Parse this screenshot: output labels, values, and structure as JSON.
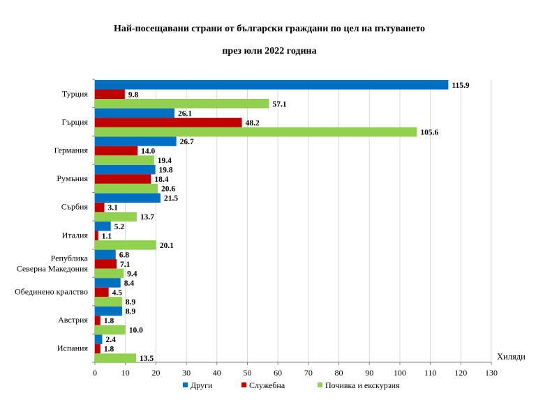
{
  "chart_data": {
    "type": "bar",
    "orientation": "horizontal",
    "title": "Най-посещавани страни от български граждани по цел на пътуването",
    "subtitle": "през юли 2022 година",
    "xlabel": "Хиляди",
    "ylabel": "",
    "xlim": [
      0,
      130
    ],
    "xticks": [
      0,
      10,
      20,
      30,
      40,
      50,
      60,
      70,
      80,
      90,
      100,
      110,
      120,
      130
    ],
    "grid": true,
    "legend_position": "bottom",
    "categories": [
      [
        "Турция"
      ],
      [
        "Гърция"
      ],
      [
        "Германия"
      ],
      [
        "Румъния"
      ],
      [
        "Сърбия"
      ],
      [
        "Италия"
      ],
      [
        "Република",
        "Северна Македония"
      ],
      [
        "Обединено кралство"
      ],
      [
        "Австрия"
      ],
      [
        "Испания"
      ]
    ],
    "series": [
      {
        "name": "Други",
        "color": "#0070C0",
        "values": [
          115.9,
          26.1,
          26.7,
          19.8,
          21.5,
          5.2,
          6.8,
          8.4,
          8.9,
          2.4
        ],
        "labels": [
          "115.9",
          "26.1",
          "26.7",
          "19.8",
          "21.5",
          "5.2",
          "6.8",
          "8.4",
          "8.9",
          "2.4"
        ]
      },
      {
        "name": "Служебна",
        "color": "#C00000",
        "values": [
          9.8,
          48.2,
          14.0,
          18.4,
          3.1,
          1.1,
          7.1,
          4.5,
          1.8,
          1.8
        ],
        "labels": [
          "9.8",
          "48.2",
          "14.0",
          "18.4",
          "3.1",
          "1.1",
          "7.1",
          "4.5",
          "1.8",
          "1.8"
        ]
      },
      {
        "name": "Почивка и екскурзия",
        "color": "#92D050",
        "values": [
          57.1,
          105.6,
          19.4,
          20.6,
          13.7,
          20.1,
          9.4,
          8.9,
          10.0,
          13.5
        ],
        "labels": [
          "57.1",
          "105.6",
          "19.4",
          "20.6",
          "13.7",
          "20.1",
          "9.4",
          "8.9",
          "10.0",
          "13.5"
        ]
      }
    ]
  }
}
